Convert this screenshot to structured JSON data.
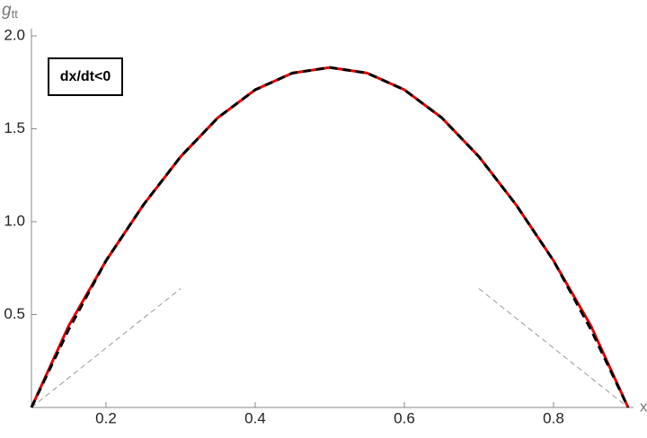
{
  "chart_data": {
    "type": "line",
    "y_label": "g",
    "y_label_sub": "tt",
    "x_label": "x",
    "annotation": "dx/dt<0",
    "xlim": [
      0.1,
      0.9
    ],
    "ylim": [
      0,
      2
    ],
    "xticks": [
      0.2,
      0.4,
      0.6,
      0.8
    ],
    "yticks": [
      0.5,
      {
        "value": 1,
        "label": "1.0"
      },
      1.5,
      {
        "value": 2,
        "label": "2.0"
      }
    ],
    "series": [
      {
        "color": "#e00000",
        "style": "solid",
        "x": [
          0.1,
          0.15,
          0.2,
          0.25,
          0.3,
          0.35,
          0.4,
          0.45,
          0.5,
          0.55,
          0.6,
          0.65,
          0.7,
          0.75,
          0.8,
          0.85,
          0.9
        ],
        "values": [
          0,
          0.44,
          0.79,
          1.09,
          1.35,
          1.56,
          1.71,
          1.8,
          1.83,
          1.8,
          1.71,
          1.56,
          1.35,
          1.09,
          0.79,
          0.44,
          0
        ]
      },
      {
        "color": "#000000",
        "style": "dashed",
        "x": [
          0.1,
          0.15,
          0.2,
          0.25,
          0.3,
          0.35,
          0.4,
          0.45,
          0.5,
          0.55,
          0.6,
          0.65,
          0.7,
          0.75,
          0.8,
          0.85,
          0.9
        ],
        "values": [
          0,
          0.42,
          0.79,
          1.09,
          1.35,
          1.56,
          1.71,
          1.8,
          1.83,
          1.8,
          1.71,
          1.56,
          1.35,
          1.09,
          0.79,
          0.42,
          0
        ]
      },
      {
        "color": "#999999",
        "style": "thin-dashed",
        "x": [
          0.1,
          0.3
        ],
        "values": [
          0,
          0.64
        ]
      },
      {
        "color": "#999999",
        "style": "thin-dashed",
        "x": [
          0.7,
          0.9
        ],
        "values": [
          0.64,
          0
        ]
      }
    ]
  }
}
